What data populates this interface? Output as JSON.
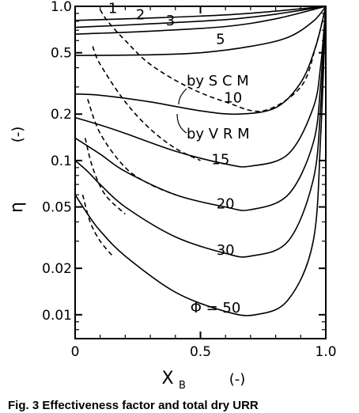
{
  "chart_data": {
    "type": "line",
    "caption": "Fig. 3 Effectiveness factor and total dry URR",
    "x_axis": {
      "label": "X",
      "label_sub": "B",
      "unit": "(-)",
      "range": [
        0,
        1.0
      ],
      "ticks": [
        0,
        0.5,
        1.0
      ],
      "tick_labels": [
        "0",
        "0.5",
        "1.0"
      ]
    },
    "y_axis": {
      "label": "η",
      "unit": "(-)",
      "scale": "log",
      "range": [
        0.007,
        1.0
      ],
      "ticks": [
        1.0,
        0.5,
        0.2,
        0.1,
        0.05,
        0.02,
        0.01
      ],
      "tick_labels": [
        "1.0",
        "0.5",
        "0.2",
        "0.1",
        "0.05",
        "0.02",
        "0.01"
      ]
    },
    "phi_prefix": "Φ = ",
    "series": [
      {
        "label": "1",
        "method": "VRM",
        "x": [
          0,
          0.3,
          0.6,
          0.8,
          1.0
        ],
        "y": [
          0.81,
          0.84,
          0.88,
          0.93,
          1.0
        ]
      },
      {
        "label": "2",
        "method": "VRM",
        "x": [
          0,
          0.3,
          0.6,
          0.8,
          1.0
        ],
        "y": [
          0.73,
          0.77,
          0.82,
          0.89,
          1.0
        ]
      },
      {
        "label": "3",
        "method": "VRM",
        "x": [
          0,
          0.3,
          0.6,
          0.8,
          1.0
        ],
        "y": [
          0.66,
          0.69,
          0.74,
          0.83,
          1.0
        ]
      },
      {
        "label": "5",
        "method": "VRM",
        "x": [
          0,
          0.3,
          0.5,
          0.7,
          0.85,
          0.95,
          1.0
        ],
        "y": [
          0.48,
          0.485,
          0.5,
          0.55,
          0.63,
          0.8,
          1.0
        ]
      },
      {
        "label": "10",
        "method": "VRM",
        "x": [
          0,
          0.1,
          0.3,
          0.5,
          0.65,
          0.8,
          0.9,
          0.96,
          1.0
        ],
        "y": [
          0.27,
          0.265,
          0.24,
          0.21,
          0.2,
          0.22,
          0.32,
          0.55,
          1.0
        ]
      },
      {
        "label": "15",
        "method": "VRM",
        "x": [
          0,
          0.1,
          0.2,
          0.4,
          0.6,
          0.7,
          0.85,
          0.95,
          0.98,
          1.0
        ],
        "y": [
          0.19,
          0.17,
          0.15,
          0.115,
          0.095,
          0.092,
          0.11,
          0.22,
          0.42,
          1.0
        ]
      },
      {
        "label": "20",
        "method": "VRM",
        "x": [
          0,
          0.1,
          0.2,
          0.4,
          0.6,
          0.7,
          0.85,
          0.95,
          0.98,
          1.0
        ],
        "y": [
          0.14,
          0.11,
          0.085,
          0.06,
          0.05,
          0.048,
          0.06,
          0.13,
          0.32,
          1.0
        ]
      },
      {
        "label": "30",
        "method": "VRM",
        "x": [
          0,
          0.05,
          0.1,
          0.2,
          0.4,
          0.6,
          0.7,
          0.85,
          0.95,
          0.98,
          1.0
        ],
        "y": [
          0.1,
          0.085,
          0.07,
          0.05,
          0.032,
          0.025,
          0.024,
          0.03,
          0.075,
          0.23,
          1.0
        ]
      },
      {
        "label": "50",
        "method": "VRM",
        "x": [
          0,
          0.05,
          0.1,
          0.2,
          0.4,
          0.6,
          0.72,
          0.85,
          0.95,
          0.98,
          1.0
        ],
        "y": [
          0.06,
          0.045,
          0.035,
          0.024,
          0.014,
          0.0105,
          0.01,
          0.0125,
          0.03,
          0.15,
          1.0
        ]
      },
      {
        "label": "10",
        "method": "SCM",
        "dashed": true,
        "x": [
          0.1,
          0.13,
          0.2,
          0.3,
          0.45,
          0.6,
          0.75,
          0.9,
          0.96,
          1.0
        ],
        "y": [
          0.95,
          0.8,
          0.6,
          0.42,
          0.3,
          0.24,
          0.21,
          0.3,
          0.55,
          1.0
        ]
      },
      {
        "label": "15",
        "method": "SCM",
        "dashed": true,
        "x": [
          0.07,
          0.1,
          0.2,
          0.3,
          0.4,
          0.5
        ],
        "y": [
          0.55,
          0.42,
          0.24,
          0.16,
          0.12,
          0.1
        ]
      },
      {
        "label": "20",
        "method": "SCM",
        "dashed": true,
        "x": [
          0.05,
          0.1,
          0.2,
          0.3,
          0.4
        ],
        "y": [
          0.25,
          0.15,
          0.09,
          0.07,
          0.06
        ]
      },
      {
        "label": "30",
        "method": "SCM",
        "dashed": true,
        "x": [
          0.04,
          0.07,
          0.12,
          0.2
        ],
        "y": [
          0.14,
          0.09,
          0.06,
          0.045
        ]
      },
      {
        "label": "50",
        "method": "SCM",
        "dashed": true,
        "x": [
          0.03,
          0.06,
          0.1,
          0.15
        ],
        "y": [
          0.06,
          0.04,
          0.03,
          0.024
        ]
      }
    ],
    "annotations": [
      {
        "text": "by S C M"
      },
      {
        "text": "by V R M"
      }
    ]
  }
}
